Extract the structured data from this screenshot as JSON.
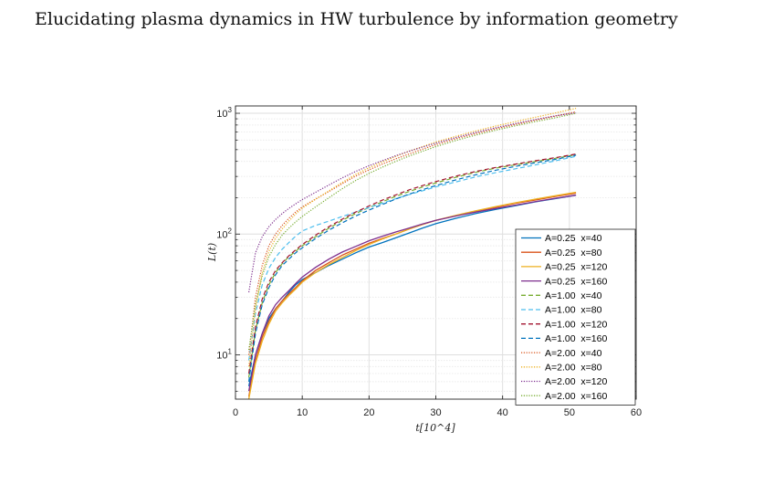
{
  "page": {
    "title": "Elucidating plasma dynamics in HW turbulence by information geometry"
  },
  "chart_data": {
    "type": "line",
    "xlabel": "t[10^4]",
    "ylabel": "L(t)",
    "xlim": [
      0,
      60
    ],
    "ylim": [
      4.3,
      1150
    ],
    "yscale": "log",
    "grid": true,
    "legend_position": "bottom-right",
    "x_ticks": [
      0,
      10,
      20,
      30,
      40,
      50,
      60
    ],
    "y_ticks": [
      10,
      100,
      1000
    ],
    "y_tick_labels": [
      {
        "base": "10",
        "exp": "1"
      },
      {
        "base": "10",
        "exp": "2"
      },
      {
        "base": "10",
        "exp": "3"
      }
    ],
    "x": [
      2,
      3,
      4,
      5,
      6,
      7,
      8,
      9,
      10,
      12,
      14,
      16,
      18,
      20,
      22,
      24,
      26,
      28,
      30,
      33,
      36,
      39,
      42,
      45,
      48,
      51
    ],
    "series": [
      {
        "name": "A=0.25  x=40",
        "color": "#0072BD",
        "dash": "solid",
        "values": [
          5.5,
          10,
          15,
          20,
          24,
          28,
          33,
          38,
          42,
          48,
          55,
          62,
          70,
          78,
          85,
          93,
          102,
          112,
          122,
          135,
          148,
          160,
          172,
          185,
          197,
          210
        ]
      },
      {
        "name": "A=0.25  x=80",
        "color": "#D95319",
        "dash": "solid",
        "values": [
          4.5,
          9,
          14,
          19,
          24,
          28,
          32,
          36,
          41,
          50,
          58,
          67,
          75,
          84,
          92,
          100,
          110,
          120,
          130,
          142,
          155,
          167,
          180,
          192,
          205,
          218
        ]
      },
      {
        "name": "A=0.25  x=120",
        "color": "#EDB120",
        "dash": "solid",
        "values": [
          4.3,
          8.5,
          13,
          18,
          23,
          27,
          31,
          35,
          40,
          48,
          56,
          64,
          73,
          82,
          91,
          100,
          110,
          120,
          130,
          143,
          156,
          169,
          182,
          195,
          208,
          222
        ]
      },
      {
        "name": "A=0.25  x=160",
        "color": "#7E2F8E",
        "dash": "solid",
        "values": [
          5,
          10,
          15,
          21,
          26,
          30,
          34,
          39,
          44,
          53,
          62,
          71,
          79,
          88,
          96,
          104,
          112,
          121,
          130,
          141,
          152,
          163,
          174,
          186,
          198,
          210
        ]
      },
      {
        "name": "A=1.00  x=40",
        "color": "#77AC30",
        "dash": "dashed",
        "values": [
          6.5,
          16,
          27,
          38,
          48,
          57,
          65,
          72,
          80,
          95,
          112,
          130,
          148,
          166,
          185,
          205,
          225,
          245,
          265,
          295,
          325,
          352,
          375,
          400,
          425,
          455
        ]
      },
      {
        "name": "A=1.00  x=80",
        "color": "#4DBEEE",
        "dash": "dashed",
        "values": [
          9,
          22,
          38,
          52,
          64,
          75,
          85,
          96,
          106,
          118,
          128,
          140,
          152,
          166,
          180,
          196,
          212,
          228,
          246,
          270,
          298,
          323,
          348,
          375,
          405,
          440
        ]
      },
      {
        "name": "A=1.00  x=120",
        "color": "#A2142F",
        "dash": "dashed",
        "values": [
          7,
          17,
          29,
          40,
          50,
          58,
          66,
          74,
          82,
          98,
          115,
          133,
          152,
          171,
          191,
          211,
          232,
          252,
          272,
          302,
          330,
          356,
          380,
          405,
          430,
          460
        ]
      },
      {
        "name": "A=1.00  x=160",
        "color": "#0072BD",
        "dash": "dashed",
        "values": [
          6,
          15,
          26,
          36,
          46,
          55,
          62,
          70,
          77,
          92,
          108,
          124,
          141,
          158,
          176,
          195,
          214,
          233,
          252,
          281,
          310,
          338,
          364,
          390,
          416,
          450
        ]
      },
      {
        "name": "A=2.00  x=40",
        "color": "#D95319",
        "dash": "dotted",
        "values": [
          10,
          30,
          55,
          80,
          100,
          118,
          135,
          152,
          168,
          195,
          225,
          262,
          302,
          340,
          380,
          420,
          460,
          505,
          550,
          615,
          680,
          745,
          810,
          880,
          950,
          1030
        ]
      },
      {
        "name": "A=2.00  x=80",
        "color": "#EDB120",
        "dash": "dotted",
        "values": [
          8,
          24,
          48,
          72,
          92,
          110,
          128,
          146,
          164,
          194,
          228,
          268,
          312,
          354,
          396,
          440,
          485,
          530,
          578,
          645,
          715,
          785,
          855,
          930,
          1010,
          1100
        ]
      },
      {
        "name": "A=2.00  x=120",
        "color": "#7E2F8E",
        "dash": "dotted",
        "values": [
          33,
          70,
          95,
          115,
          132,
          148,
          163,
          178,
          193,
          222,
          255,
          292,
          330,
          368,
          405,
          445,
          485,
          525,
          566,
          630,
          695,
          760,
          825,
          890,
          955,
          1010
        ]
      },
      {
        "name": "A=2.00  x=160",
        "color": "#77AC30",
        "dash": "dotted",
        "values": [
          11,
          26,
          45,
          65,
          82,
          98,
          112,
          126,
          140,
          168,
          200,
          238,
          278,
          318,
          358,
          400,
          442,
          485,
          530,
          595,
          660,
          725,
          790,
          855,
          920,
          1000
        ]
      }
    ]
  }
}
